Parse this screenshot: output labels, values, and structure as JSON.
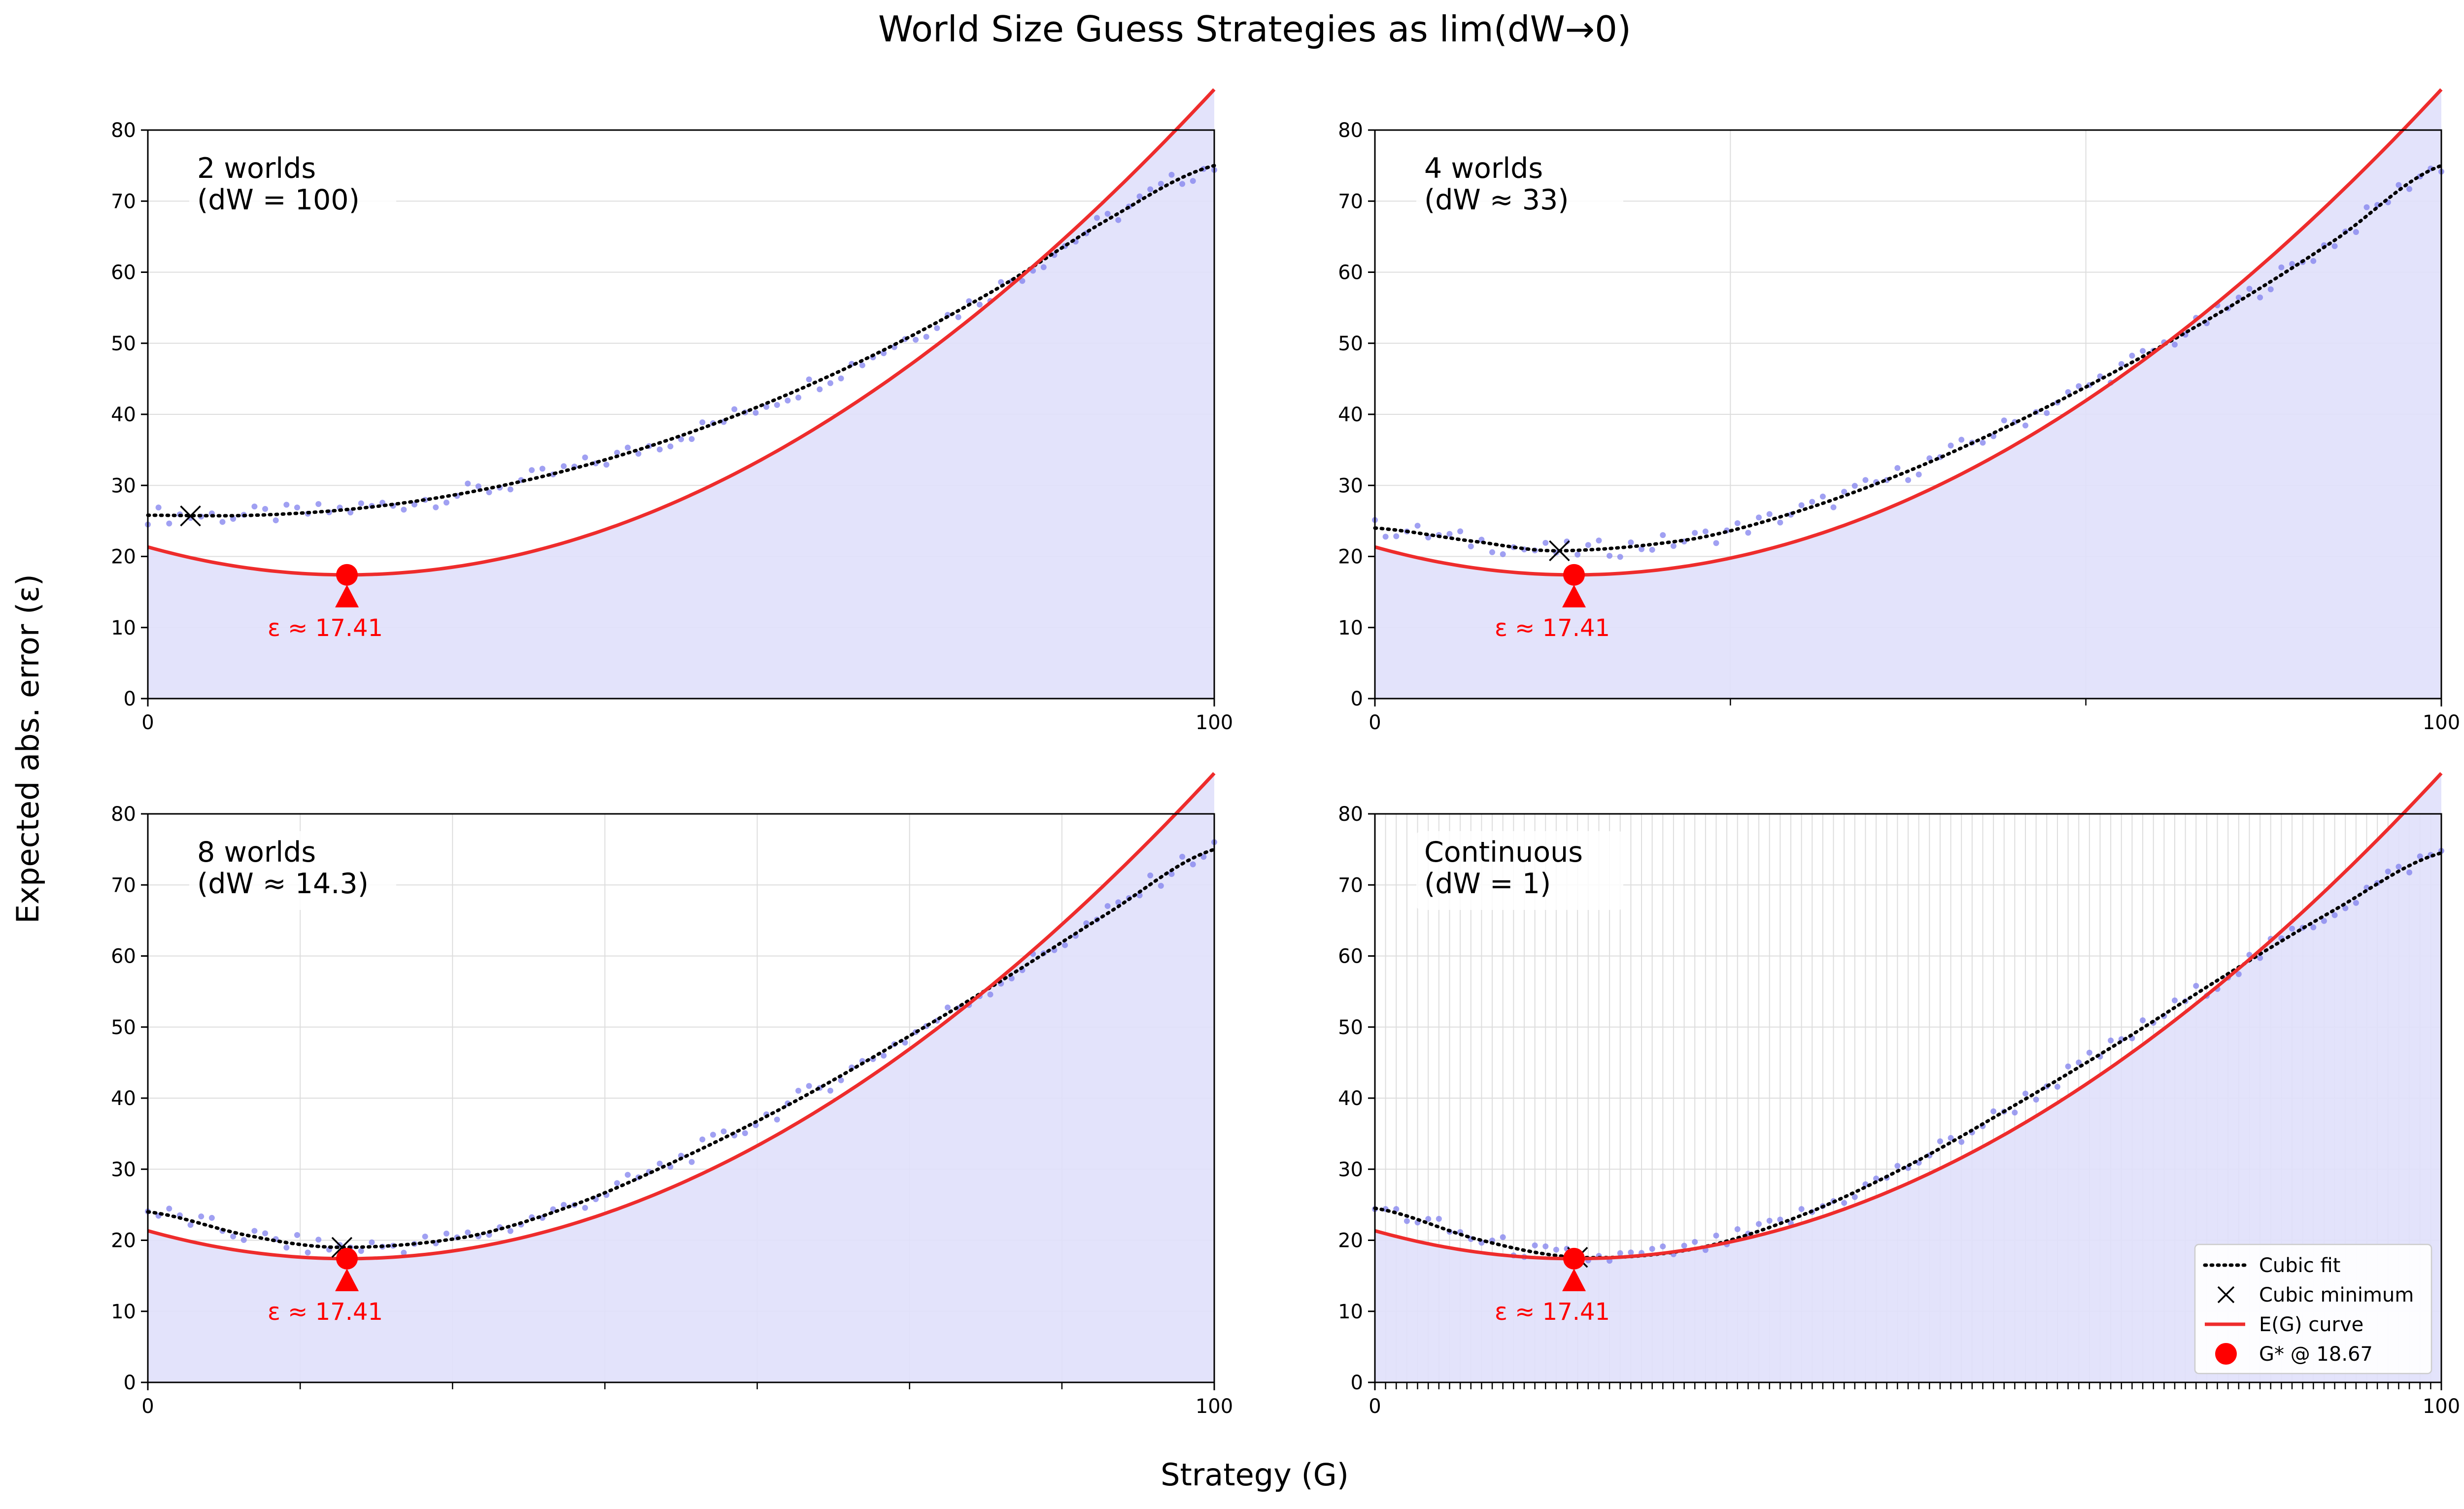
{
  "figure": {
    "title": "World Size Guess Strategies as lim(dW→0)",
    "xlabel": "Strategy (G)",
    "ylabel": "Expected abs. error (ε)"
  },
  "colors": {
    "curve": "#ee2c2c",
    "marker": "#ff0000",
    "fill": "#e0e0fb",
    "samples": "#8080ee",
    "fit": "#000000",
    "grid": "#dddddd"
  },
  "legend": {
    "placement": "lower-right",
    "items": [
      {
        "label": "Cubic fit",
        "icon": "dotted-line"
      },
      {
        "label": "Cubic minimum",
        "icon": "x-marker"
      },
      {
        "label": "E(G) curve",
        "icon": "red-line"
      },
      {
        "label": "G* @ 18.67",
        "icon": "red-dot"
      }
    ]
  },
  "chart_data": [
    {
      "type": "line",
      "title": "2 worlds\n(dW = 100)",
      "worlds": 2,
      "x_tick_labels": [
        "0",
        "100"
      ],
      "y_ticks": [
        0,
        10,
        20,
        30,
        40,
        50,
        60,
        70,
        80
      ],
      "xlim": [
        0,
        100
      ],
      "ylim": [
        0,
        80
      ],
      "curve": "E(G)",
      "cubic_fit": [
        [
          0,
          25.8
        ],
        [
          10,
          25.8
        ],
        [
          20,
          26.8
        ],
        [
          30,
          29.0
        ],
        [
          40,
          32.4
        ],
        [
          50,
          37.0
        ],
        [
          60,
          42.8
        ],
        [
          70,
          49.8
        ],
        [
          80,
          58.0
        ],
        [
          90,
          67.4
        ],
        [
          100,
          75.0
        ]
      ],
      "cubic_min": [
        4,
        25.7
      ],
      "g_star": 18.67,
      "epsilon_label": "ε ≈ 17.41"
    },
    {
      "type": "line",
      "title": "4 worlds\n(dW ≈ 33)",
      "worlds": 4,
      "x_tick_labels": [
        "0",
        "100"
      ],
      "y_ticks": [
        0,
        10,
        20,
        30,
        40,
        50,
        60,
        70,
        80
      ],
      "xlim": [
        0,
        100
      ],
      "ylim": [
        0,
        80
      ],
      "curve": "E(G)",
      "cubic_fit": [
        [
          0,
          24.0
        ],
        [
          10,
          22.0
        ],
        [
          17.3,
          20.8
        ],
        [
          30,
          22.5
        ],
        [
          40,
          26.5
        ],
        [
          50,
          32.0
        ],
        [
          60,
          38.8
        ],
        [
          70,
          46.5
        ],
        [
          80,
          55.0
        ],
        [
          90,
          64.5
        ],
        [
          100,
          75.0
        ]
      ],
      "cubic_min": [
        17.3,
        20.8
      ],
      "g_star": 18.67,
      "epsilon_label": "ε ≈ 17.41"
    },
    {
      "type": "line",
      "title": "8 worlds\n(dW ≈ 14.3)",
      "worlds": 8,
      "x_tick_labels": [
        "0",
        "100"
      ],
      "y_ticks": [
        0,
        10,
        20,
        30,
        40,
        50,
        60,
        70,
        80
      ],
      "xlim": [
        0,
        100
      ],
      "ylim": [
        0,
        80
      ],
      "curve": "E(G)",
      "cubic_fit": [
        [
          0,
          24.0
        ],
        [
          10,
          20.5
        ],
        [
          18.2,
          19.0
        ],
        [
          30,
          20.5
        ],
        [
          40,
          25.0
        ],
        [
          50,
          31.5
        ],
        [
          60,
          39.0
        ],
        [
          70,
          47.5
        ],
        [
          80,
          56.5
        ],
        [
          90,
          66.0
        ],
        [
          100,
          75.0
        ]
      ],
      "cubic_min": [
        18.2,
        19.0
      ],
      "g_star": 18.67,
      "epsilon_label": "ε ≈ 17.41"
    },
    {
      "type": "line",
      "title": "Continuous\n(dW = 1)",
      "worlds": 101,
      "x_tick_labels": [
        "0",
        "100"
      ],
      "y_ticks": [
        0,
        10,
        20,
        30,
        40,
        50,
        60,
        70,
        80
      ],
      "xlim": [
        0,
        100
      ],
      "ylim": [
        0,
        80
      ],
      "curve": "E(G)",
      "cubic_fit": [
        [
          0,
          24.5
        ],
        [
          10,
          20.0
        ],
        [
          19,
          17.6
        ],
        [
          30,
          18.8
        ],
        [
          40,
          23.5
        ],
        [
          50,
          30.5
        ],
        [
          60,
          39.0
        ],
        [
          70,
          48.0
        ],
        [
          80,
          57.5
        ],
        [
          90,
          66.5
        ],
        [
          100,
          74.5
        ]
      ],
      "cubic_min": [
        19,
        17.6
      ],
      "g_star": 18.67,
      "epsilon_label": "ε ≈ 17.41"
    }
  ]
}
